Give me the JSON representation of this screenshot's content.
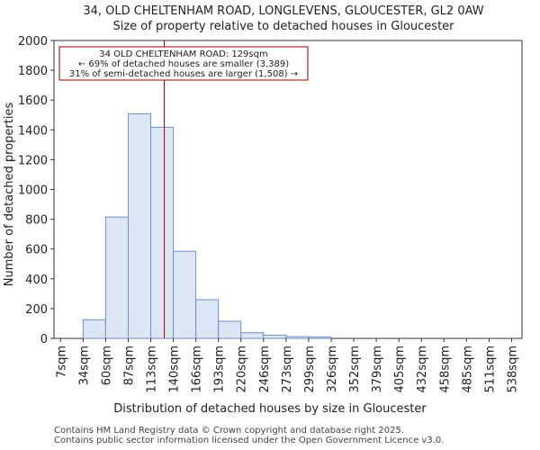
{
  "chart_data": {
    "type": "bar",
    "title": "34, OLD CHELTENHAM ROAD, LONGLEVENS, GLOUCESTER, GL2 0AW",
    "subtitle": "Size of property relative to detached houses in Gloucester",
    "xlabel": "Distribution of detached houses by size in Gloucester",
    "ylabel": "Number of detached properties",
    "ylim": [
      0,
      2000
    ],
    "yticks": [
      "0",
      "200",
      "400",
      "600",
      "800",
      "1000",
      "1200",
      "1400",
      "1600",
      "1800",
      "2000"
    ],
    "categories": [
      "7sqm",
      "34sqm",
      "60sqm",
      "87sqm",
      "113sqm",
      "140sqm",
      "166sqm",
      "193sqm",
      "220sqm",
      "246sqm",
      "273sqm",
      "299sqm",
      "326sqm",
      "352sqm",
      "379sqm",
      "405sqm",
      "432sqm",
      "458sqm",
      "485sqm",
      "511sqm",
      "538sqm"
    ],
    "values": [
      0,
      125,
      815,
      1508,
      1418,
      585,
      260,
      115,
      38,
      22,
      12,
      10,
      0,
      0,
      0,
      0,
      0,
      0,
      0,
      0,
      0
    ],
    "marker_value_index": 4.6,
    "bar_color": "#dce6f5",
    "bar_edge_color": "#6f8fc6",
    "marker_color": "#990000",
    "annotation": {
      "line1": "34 OLD CHELTENHAM ROAD: 129sqm",
      "line2": "← 69% of detached houses are smaller (3,389)",
      "line3": "31% of semi-detached houses are larger (1,508) →"
    }
  },
  "footer": {
    "line1": "Contains HM Land Registry data © Crown copyright and database right 2025.",
    "line2": "Contains public sector information licensed under the Open Government Licence v3.0."
  }
}
